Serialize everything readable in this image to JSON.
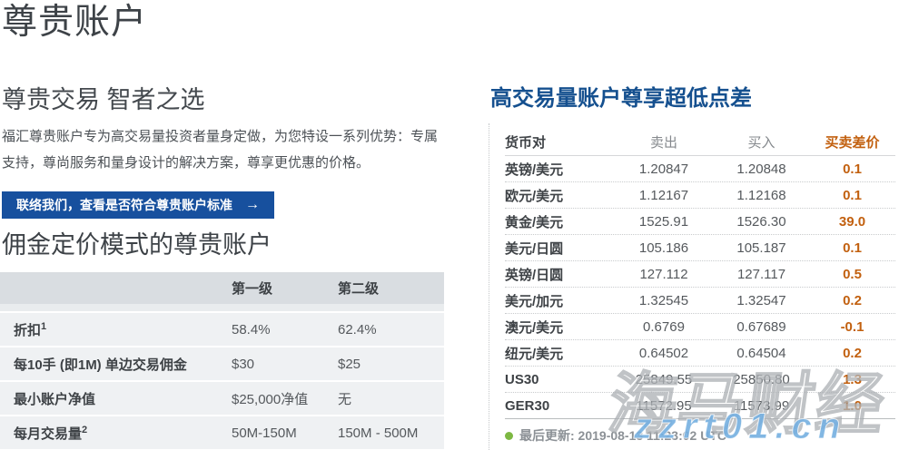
{
  "page": {
    "title": "尊贵账户",
    "tagline": "尊贵交易 智者之选",
    "description": "福汇尊贵账户专为高交易量投资者量身定做，为您特设一系列优势：专属支持，尊尚服务和量身设计的解决方案，尊享更优惠的价格。",
    "cta_label": "联络我们，查看是否符合尊贵账户标准",
    "cta_arrow": "→"
  },
  "commission": {
    "heading": "佣金定价模式的尊贵账户",
    "columns": [
      "第一级",
      "第二级"
    ],
    "rows": [
      {
        "label": "折扣",
        "sup": "1",
        "tier1": "58.4%",
        "tier2": "62.4%"
      },
      {
        "label": "每10手 (即1M) 单边交易佣金",
        "sup": "",
        "tier1": "$30",
        "tier2": "$25"
      },
      {
        "label": "最小账户净值",
        "sup": "",
        "tier1": "$25,000净值",
        "tier2": "无"
      },
      {
        "label": "每月交易量",
        "sup": "2",
        "tier1": "50M-150M",
        "tier2": "150M - 500M"
      }
    ]
  },
  "spreads": {
    "heading": "高交易量账户尊享超低点差",
    "columns": [
      "货币对",
      "卖出",
      "买入",
      "买卖差价"
    ],
    "rows": [
      {
        "pair": "英镑/美元",
        "sell": "1.20847",
        "buy": "1.20848",
        "spread": "0.1"
      },
      {
        "pair": "欧元/美元",
        "sell": "1.12167",
        "buy": "1.12168",
        "spread": "0.1"
      },
      {
        "pair": "黄金/美元",
        "sell": "1525.91",
        "buy": "1526.30",
        "spread": "39.0"
      },
      {
        "pair": "美元/日圆",
        "sell": "105.186",
        "buy": "105.187",
        "spread": "0.1"
      },
      {
        "pair": "英镑/日圆",
        "sell": "127.112",
        "buy": "127.117",
        "spread": "0.5"
      },
      {
        "pair": "美元/加元",
        "sell": "1.32545",
        "buy": "1.32547",
        "spread": "0.2"
      },
      {
        "pair": "澳元/美元",
        "sell": "0.6769",
        "buy": "0.67689",
        "spread": "-0.1"
      },
      {
        "pair": "纽元/美元",
        "sell": "0.64502",
        "buy": "0.64504",
        "spread": "0.2"
      },
      {
        "pair": "US30",
        "sell": "25849.55",
        "buy": "25850.80",
        "spread": "1.3"
      },
      {
        "pair": "GER30",
        "sell": "11572.95",
        "buy": "11573.99",
        "spread": "1.0"
      }
    ],
    "last_updated": "最后更新: 2019-08-13 11:23:02 UTC"
  },
  "watermark": {
    "cn_text": "海马财经",
    "domain": "zzrt01.cn"
  },
  "colors": {
    "brand_blue": "#17509e",
    "heading_blue": "#15508f",
    "spread_orange": "#c2600f",
    "status_green": "#7db843",
    "table_header_gray": "#d9dde1",
    "table_row_gray": "#eff1f3"
  }
}
